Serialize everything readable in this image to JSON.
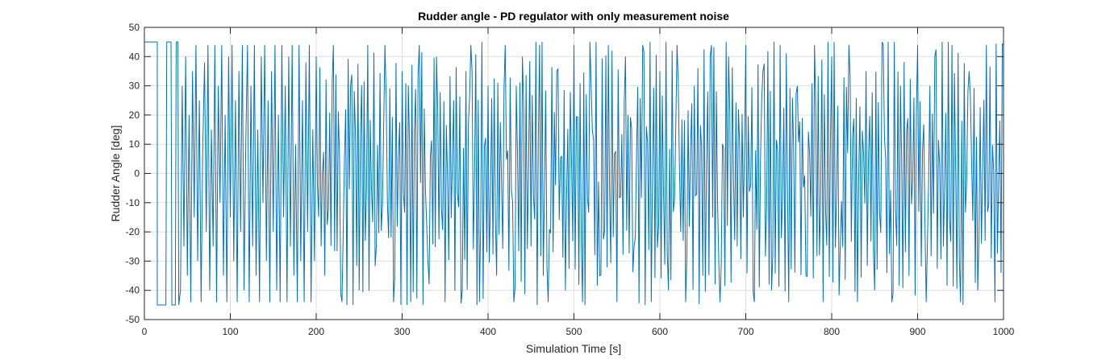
{
  "chart_data": {
    "type": "line",
    "title": "Rudder angle - PD regulator with only measurement noise",
    "xlabel": "Simulation Time [s]",
    "ylabel": "Rudder Angle [deg]",
    "xlim": [
      0,
      1000
    ],
    "ylim": [
      -50,
      50
    ],
    "xticks": [
      0,
      100,
      200,
      300,
      400,
      500,
      600,
      700,
      800,
      900,
      1000
    ],
    "yticks": [
      -50,
      -40,
      -30,
      -20,
      -10,
      0,
      10,
      20,
      30,
      40,
      50
    ],
    "grid": true,
    "series": [
      {
        "color": "#0072BD",
        "saturation_limits": [
          -45,
          45
        ],
        "points": [
          [
            0,
            45
          ],
          [
            15,
            45
          ],
          [
            15,
            -45
          ],
          [
            25,
            -45
          ],
          [
            26,
            45
          ],
          [
            31,
            45
          ],
          [
            32,
            -45
          ],
          [
            36,
            -45
          ],
          [
            37,
            45
          ],
          [
            39,
            45
          ],
          [
            40,
            -45
          ],
          [
            42,
            -40
          ],
          [
            44,
            30
          ],
          [
            46,
            -25
          ],
          [
            48,
            40
          ],
          [
            50,
            -35
          ],
          [
            52,
            20
          ],
          [
            54,
            -44
          ],
          [
            56,
            35
          ],
          [
            58,
            -15
          ],
          [
            60,
            44
          ],
          [
            62,
            -30
          ],
          [
            64,
            25
          ],
          [
            66,
            -44
          ],
          [
            68,
            10
          ],
          [
            70,
            38
          ],
          [
            72,
            -20
          ],
          [
            74,
            44
          ],
          [
            76,
            -40
          ],
          [
            78,
            15
          ],
          [
            80,
            -25
          ],
          [
            82,
            44
          ],
          [
            84,
            -44
          ],
          [
            86,
            30
          ],
          [
            88,
            -10
          ],
          [
            90,
            44
          ],
          [
            92,
            -35
          ],
          [
            94,
            20
          ],
          [
            96,
            -44
          ],
          [
            98,
            40
          ],
          [
            100,
            -15
          ],
          [
            102,
            44
          ],
          [
            104,
            -30
          ],
          [
            106,
            25
          ],
          [
            108,
            -44
          ],
          [
            110,
            35
          ],
          [
            112,
            -20
          ],
          [
            114,
            44
          ],
          [
            116,
            -40
          ],
          [
            118,
            10
          ],
          [
            120,
            44
          ],
          [
            122,
            -44
          ],
          [
            124,
            30
          ],
          [
            126,
            -25
          ],
          [
            128,
            44
          ],
          [
            130,
            -35
          ],
          [
            132,
            15
          ],
          [
            134,
            -44
          ],
          [
            136,
            40
          ],
          [
            138,
            -10
          ],
          [
            140,
            44
          ],
          [
            142,
            -30
          ],
          [
            144,
            25
          ],
          [
            146,
            -44
          ],
          [
            148,
            35
          ],
          [
            150,
            -20
          ],
          [
            152,
            44
          ],
          [
            154,
            -40
          ],
          [
            156,
            20
          ],
          [
            158,
            -44
          ],
          [
            160,
            44
          ],
          [
            162,
            -15
          ],
          [
            164,
            30
          ],
          [
            166,
            -44
          ],
          [
            168,
            40
          ],
          [
            170,
            -25
          ],
          [
            172,
            44
          ],
          [
            174,
            -35
          ],
          [
            176,
            10
          ],
          [
            178,
            -44
          ],
          [
            180,
            44
          ],
          [
            182,
            -30
          ],
          [
            184,
            25
          ],
          [
            186,
            -44
          ],
          [
            188,
            38
          ],
          [
            190,
            -20
          ],
          [
            192,
            44
          ],
          [
            194,
            -44
          ],
          [
            196,
            15
          ],
          [
            198,
            -30
          ],
          [
            200,
            40
          ],
          [
            210,
            -35
          ],
          [
            220,
            44
          ],
          [
            230,
            -44
          ],
          [
            240,
            30
          ],
          [
            250,
            -40
          ],
          [
            260,
            44
          ],
          [
            270,
            -25
          ],
          [
            280,
            44
          ],
          [
            290,
            -44
          ],
          [
            300,
            35
          ],
          [
            310,
            -44
          ],
          [
            320,
            44
          ],
          [
            330,
            -30
          ],
          [
            340,
            40
          ],
          [
            350,
            -44
          ],
          [
            360,
            25
          ],
          [
            370,
            -40
          ],
          [
            380,
            44
          ],
          [
            390,
            -44
          ],
          [
            400,
            30
          ],
          [
            410,
            -35
          ],
          [
            420,
            44
          ],
          [
            430,
            -44
          ],
          [
            440,
            40
          ],
          [
            450,
            -25
          ],
          [
            460,
            44
          ],
          [
            470,
            -44
          ],
          [
            480,
            35
          ],
          [
            490,
            -40
          ],
          [
            500,
            44
          ],
          [
            510,
            -44
          ],
          [
            520,
            30
          ],
          [
            530,
            -35
          ],
          [
            540,
            44
          ],
          [
            550,
            -44
          ],
          [
            560,
            40
          ],
          [
            570,
            -25
          ],
          [
            580,
            44
          ],
          [
            590,
            -44
          ],
          [
            600,
            35
          ],
          [
            610,
            -40
          ],
          [
            620,
            44
          ],
          [
            630,
            -44
          ],
          [
            640,
            30
          ],
          [
            650,
            -35
          ],
          [
            660,
            44
          ],
          [
            670,
            -44
          ],
          [
            680,
            40
          ],
          [
            690,
            -25
          ],
          [
            700,
            44
          ],
          [
            710,
            -44
          ],
          [
            720,
            35
          ],
          [
            730,
            -40
          ],
          [
            740,
            44
          ],
          [
            750,
            -44
          ],
          [
            760,
            30
          ],
          [
            770,
            -35
          ],
          [
            780,
            44
          ],
          [
            790,
            -44
          ],
          [
            800,
            40
          ],
          [
            810,
            -25
          ],
          [
            820,
            44
          ],
          [
            830,
            -44
          ],
          [
            840,
            35
          ],
          [
            850,
            -40
          ],
          [
            860,
            44
          ],
          [
            870,
            -44
          ],
          [
            880,
            30
          ],
          [
            890,
            -35
          ],
          [
            900,
            44
          ],
          [
            910,
            -44
          ],
          [
            920,
            40
          ],
          [
            930,
            -25
          ],
          [
            940,
            44
          ],
          [
            950,
            -44
          ],
          [
            960,
            35
          ],
          [
            970,
            -40
          ],
          [
            980,
            44
          ],
          [
            990,
            -44
          ],
          [
            1000,
            44
          ]
        ]
      }
    ]
  }
}
